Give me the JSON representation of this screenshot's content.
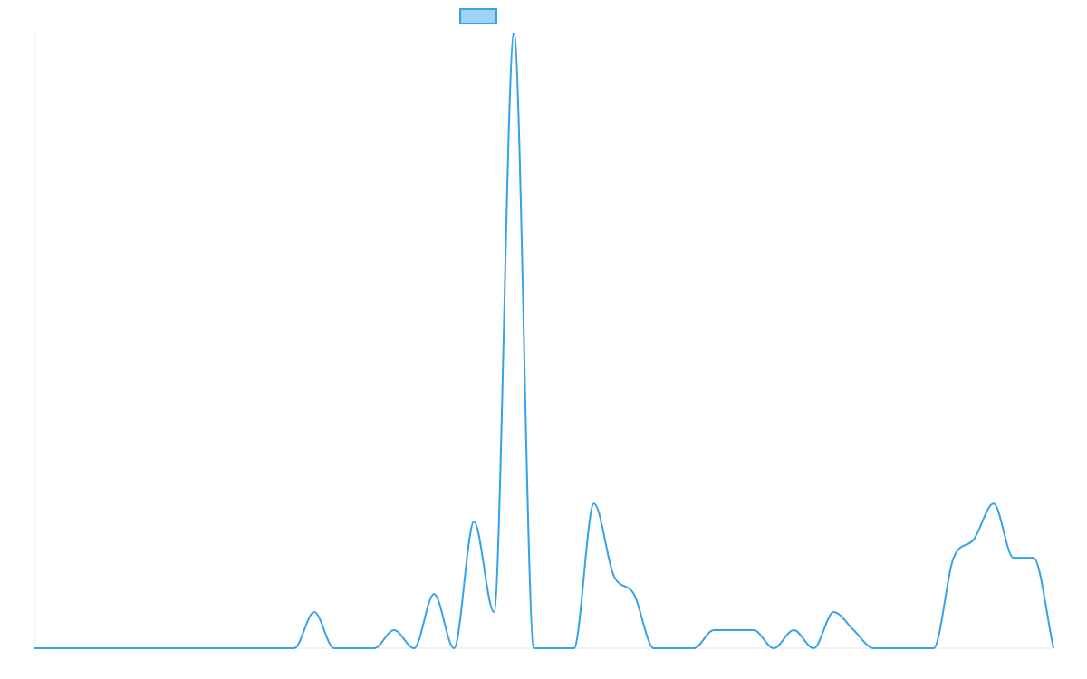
{
  "chart_data": {
    "type": "line",
    "title": "",
    "xlabel": "",
    "ylabel": "",
    "legend": {
      "position": "top-center",
      "entries": [
        {
          "label": "",
          "swatch_fill": "#9fd3f6",
          "swatch_stroke": "#36a2e8"
        }
      ]
    },
    "grid": false,
    "x": [
      0,
      1,
      2,
      3,
      4,
      5,
      6,
      7,
      8,
      9,
      10,
      11,
      12,
      13,
      14,
      15,
      16,
      17,
      18,
      19,
      20,
      21,
      22,
      23,
      24,
      25,
      26,
      27,
      28,
      29,
      30,
      31,
      32,
      33,
      34,
      35,
      36,
      37,
      38,
      39,
      40,
      41,
      42,
      43,
      44,
      45,
      46,
      47,
      48,
      49,
      50,
      51
    ],
    "ylim": [
      0,
      34
    ],
    "xlim": [
      0,
      51
    ],
    "series": [
      {
        "color": "#36a2e8",
        "values": [
          0,
          0,
          0,
          0,
          0,
          0,
          0,
          0,
          0,
          0,
          0,
          0,
          0,
          0,
          2,
          0,
          0,
          0,
          1,
          0,
          3,
          0,
          7,
          2,
          34,
          0,
          0,
          0,
          8,
          4,
          3,
          0,
          0,
          0,
          1,
          1,
          1,
          0,
          1,
          0,
          2,
          1,
          0,
          0,
          0,
          0,
          5,
          6,
          8,
          5,
          5,
          0
        ]
      }
    ]
  },
  "colors": {
    "line": "#36a2e8",
    "axis": "#e5e5e5",
    "background": "#ffffff"
  }
}
